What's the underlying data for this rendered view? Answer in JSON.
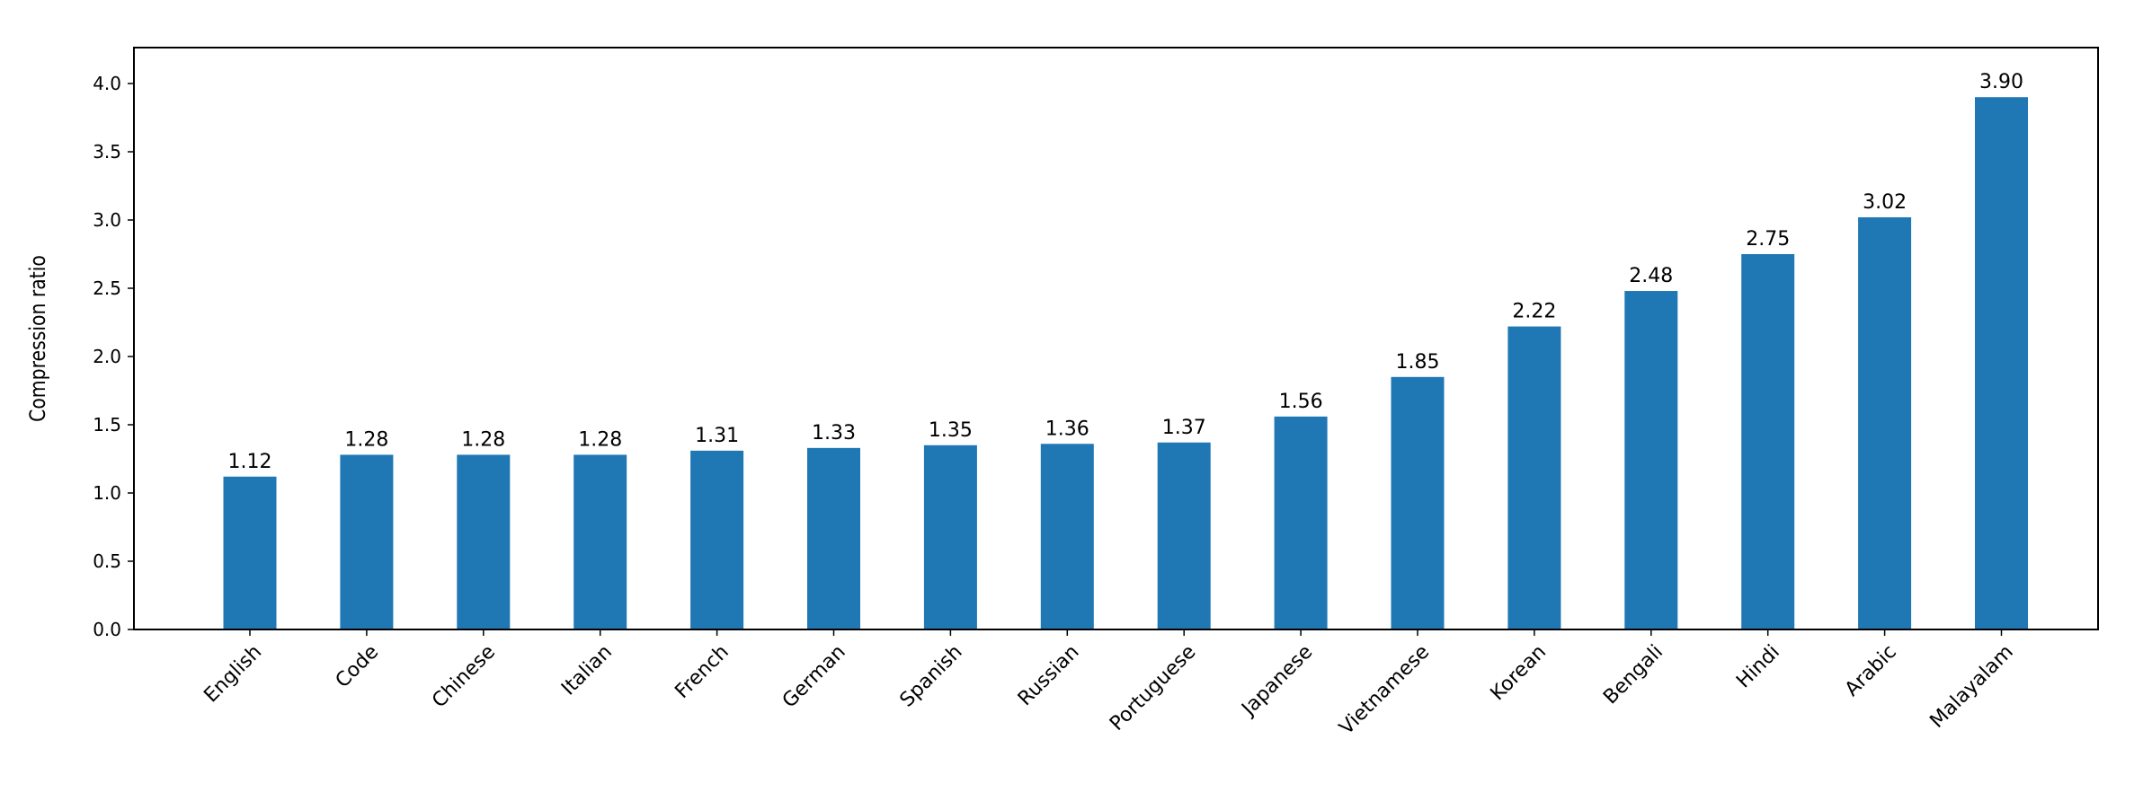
{
  "chart_data": {
    "type": "bar",
    "title": "",
    "xlabel": "",
    "ylabel": "Compression ratio",
    "categories": [
      "English",
      "Code",
      "Chinese",
      "Italian",
      "French",
      "German",
      "Spanish",
      "Russian",
      "Portuguese",
      "Japanese",
      "Vietnamese",
      "Korean",
      "Bengali",
      "Hindi",
      "Arabic",
      "Malayalam"
    ],
    "values": [
      1.12,
      1.28,
      1.28,
      1.28,
      1.31,
      1.33,
      1.35,
      1.36,
      1.37,
      1.56,
      1.85,
      2.22,
      2.48,
      2.75,
      3.02,
      3.9
    ],
    "data_labels": [
      "1.12",
      "1.28",
      "1.28",
      "1.28",
      "1.31",
      "1.33",
      "1.35",
      "1.36",
      "1.37",
      "1.56",
      "1.85",
      "2.22",
      "2.48",
      "2.75",
      "3.02",
      "3.90"
    ],
    "yticks": [
      "0.0",
      "0.5",
      "1.0",
      "1.5",
      "2.0",
      "2.5",
      "3.0",
      "3.5",
      "4.0"
    ],
    "ylim": [
      0,
      4.26
    ],
    "grid": false,
    "legend": "none",
    "bar_color": "#1f77b4"
  }
}
